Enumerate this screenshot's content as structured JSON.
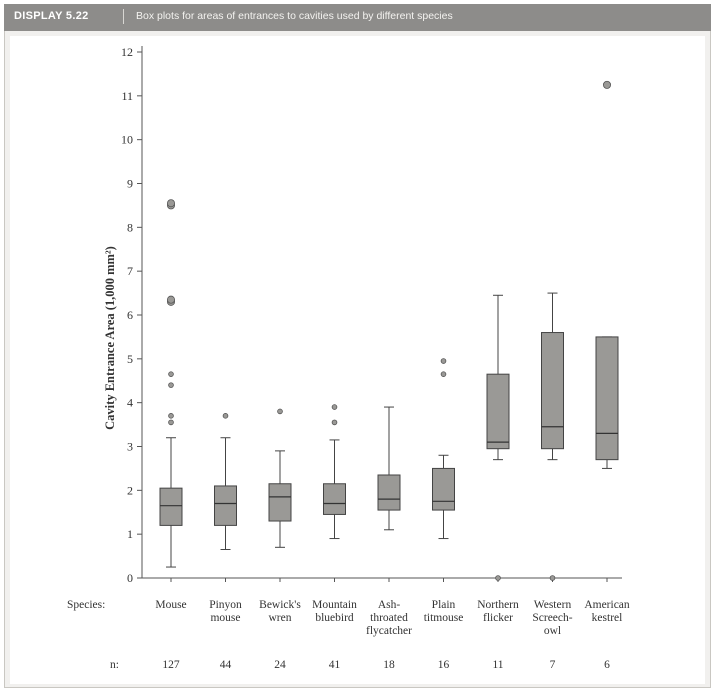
{
  "header": {
    "tag": "DISPLAY 5.22",
    "caption": "Box plots for areas of entrances to cavities used by different species"
  },
  "colors": {
    "box_fill": "#9a9996",
    "axis": "#555555",
    "header_bg": "#8d8c8a"
  },
  "chart_data": {
    "type": "boxplot",
    "ylabel": "Cavity Entrance Area (1,000 mm²)",
    "ylim": [
      0,
      12
    ],
    "yticks": [
      "0",
      "1",
      "2",
      "3",
      "4",
      "5",
      "6",
      "7",
      "8",
      "9",
      "10",
      "11",
      "12"
    ],
    "species_label": "Species:",
    "n_label": "n:",
    "categories": [
      {
        "label": [
          "Mouse"
        ],
        "n": "127",
        "whisker_low": 0.25,
        "q1": 1.2,
        "median": 1.65,
        "q3": 2.05,
        "whisker_high": 3.2,
        "outliers": [
          3.55,
          3.7,
          4.4,
          4.65,
          6.3,
          6.35,
          8.5,
          8.55
        ]
      },
      {
        "label": [
          "Pinyon",
          "mouse"
        ],
        "n": "44",
        "whisker_low": 0.65,
        "q1": 1.2,
        "median": 1.7,
        "q3": 2.1,
        "whisker_high": 3.2,
        "outliers": [
          3.7
        ]
      },
      {
        "label": [
          "Bewick's",
          "wren"
        ],
        "n": "24",
        "whisker_low": 0.7,
        "q1": 1.3,
        "median": 1.85,
        "q3": 2.15,
        "whisker_high": 2.9,
        "outliers": [
          3.8
        ]
      },
      {
        "label": [
          "Mountain",
          "bluebird"
        ],
        "n": "41",
        "whisker_low": 0.9,
        "q1": 1.45,
        "median": 1.7,
        "q3": 2.15,
        "whisker_high": 3.15,
        "outliers": [
          3.55,
          3.9
        ]
      },
      {
        "label": [
          "Ash-",
          "throated",
          "flycatcher"
        ],
        "n": "18",
        "whisker_low": 1.1,
        "q1": 1.55,
        "median": 1.8,
        "q3": 2.35,
        "whisker_high": 3.9,
        "outliers": []
      },
      {
        "label": [
          "Plain",
          "titmouse"
        ],
        "n": "16",
        "whisker_low": 0.9,
        "q1": 1.55,
        "median": 1.75,
        "q3": 2.5,
        "whisker_high": 2.8,
        "outliers": [
          4.65,
          4.95
        ]
      },
      {
        "label": [
          "Northern",
          "flicker"
        ],
        "n": "11",
        "whisker_low": 2.7,
        "q1": 2.95,
        "median": 3.1,
        "q3": 4.65,
        "whisker_high": 6.45,
        "outliers": [
          0.0
        ]
      },
      {
        "label": [
          "Western",
          "Screech-",
          "owl"
        ],
        "n": "7",
        "whisker_low": 2.7,
        "q1": 2.95,
        "median": 3.45,
        "q3": 5.6,
        "whisker_high": 6.5,
        "outliers": [
          0.0
        ]
      },
      {
        "label": [
          "American",
          "kestrel"
        ],
        "n": "6",
        "whisker_low": 2.5,
        "q1": 2.7,
        "median": 3.3,
        "q3": 5.5,
        "whisker_high": 5.5,
        "outliers": [
          11.25
        ]
      }
    ]
  }
}
